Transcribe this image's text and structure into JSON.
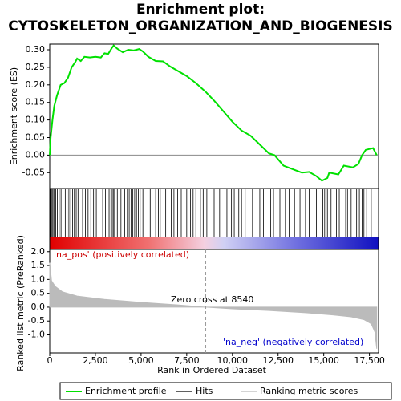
{
  "chart_data": {
    "type": "gsea",
    "title": "Enrichment plot:",
    "subtitle": "CYTOSKELETON_ORGANIZATION_AND_BIOGENESIS",
    "x_label": "Rank in Ordered Dataset",
    "y_label": "Enrichment score (ES)",
    "y2_label": "Ranked list metric (PreRanked)",
    "xlim": [
      0,
      18000
    ],
    "xticks": [
      0,
      {
        "value": 2500,
        "label": "2,500"
      },
      {
        "value": 5000,
        "label": "5,000"
      },
      {
        "value": 7500,
        "label": "7,500"
      },
      {
        "value": 10000,
        "label": "10,000"
      },
      {
        "value": 12500,
        "label": "12,500"
      },
      {
        "value": 15000,
        "label": "15,000"
      },
      {
        "value": 17500,
        "label": "17,500"
      }
    ],
    "ylim": [
      -0.095,
      0.316
    ],
    "yticks": [
      {
        "value": -0.05,
        "label": "-0.05"
      },
      {
        "value": 0,
        "label": "0.00"
      },
      {
        "value": 0.05,
        "label": "0.05"
      },
      {
        "value": 0.1,
        "label": "0.10"
      },
      {
        "value": 0.15,
        "label": "0.15"
      },
      {
        "value": 0.2,
        "label": "0.20"
      },
      {
        "value": 0.25,
        "label": "0.25"
      },
      {
        "value": 0.3,
        "label": "0.30"
      }
    ],
    "y2lim": [
      -1.65,
      2.08
    ],
    "y2ticks": [
      {
        "value": -1,
        "label": "-1.0"
      },
      {
        "value": -0.5,
        "label": "-0.5"
      },
      {
        "value": 0,
        "label": "0.0"
      },
      {
        "value": 0.5,
        "label": "0.5"
      },
      {
        "value": 1,
        "label": "1.0"
      },
      {
        "value": 1.5,
        "label": "1.5"
      },
      {
        "value": 2,
        "label": "2.0"
      }
    ],
    "series": [
      {
        "name": "Enrichment profile",
        "color": "#00e000",
        "x": [
          0,
          50,
          150,
          250,
          400,
          600,
          800,
          1000,
          1200,
          1400,
          1500,
          1700,
          1900,
          2200,
          2500,
          2800,
          3000,
          3200,
          3400,
          3500,
          3700,
          4000,
          4300,
          4600,
          4900,
          5100,
          5400,
          5800,
          6200,
          6600,
          7000,
          7500,
          8000,
          8540,
          9000,
          9500,
          10000,
          10500,
          11000,
          11500,
          12000,
          12300,
          12800,
          13300,
          13800,
          14200,
          14600,
          14900,
          15200,
          15300,
          15800,
          16100,
          16600,
          16900,
          17100,
          17300,
          17700,
          17900
        ],
        "values": [
          0,
          0.05,
          0.1,
          0.14,
          0.17,
          0.2,
          0.205,
          0.22,
          0.25,
          0.265,
          0.275,
          0.268,
          0.28,
          0.278,
          0.28,
          0.278,
          0.29,
          0.288,
          0.305,
          0.312,
          0.303,
          0.293,
          0.3,
          0.298,
          0.302,
          0.295,
          0.28,
          0.268,
          0.267,
          0.252,
          0.24,
          0.225,
          0.205,
          0.18,
          0.155,
          0.125,
          0.095,
          0.07,
          0.055,
          0.03,
          0.005,
          0,
          -0.03,
          -0.04,
          -0.05,
          -0.048,
          -0.06,
          -0.073,
          -0.065,
          -0.05,
          -0.055,
          -0.03,
          -0.035,
          -0.025,
          0,
          0.015,
          0.02,
          0
        ]
      },
      {
        "name": "Hits",
        "color": "#000000",
        "x": [
          30,
          80,
          130,
          180,
          250,
          330,
          420,
          520,
          620,
          720,
          850,
          950,
          1050,
          1150,
          1250,
          1350,
          1450,
          1550,
          1800,
          1950,
          2100,
          2250,
          2400,
          2550,
          2700,
          2900,
          3050,
          3250,
          3350,
          3420,
          3480,
          3550,
          3700,
          3900,
          4100,
          4250,
          4350,
          4450,
          4550,
          4650,
          4750,
          4850,
          4950,
          5100,
          5500,
          5800,
          5950,
          6050,
          6350,
          6650,
          6800,
          7000,
          7200,
          7500,
          7700,
          7850,
          8000,
          8250,
          8400,
          8600,
          9000,
          9300,
          9700,
          9950,
          10100,
          10350,
          10500,
          10700,
          11100,
          11500,
          11700,
          12100,
          12250,
          12600,
          12900,
          13100,
          13400,
          13700,
          14000,
          14200,
          14600,
          14950,
          15050,
          15200,
          15400,
          15700,
          15850,
          16000,
          16200,
          16300,
          16500,
          16800,
          16950,
          17100,
          17200,
          17350,
          17600
        ]
      },
      {
        "name": "Ranking metric scores",
        "color": "#bbbbbb",
        "axis": "y2",
        "x": [
          0,
          100,
          300,
          700,
          1500,
          3000,
          5000,
          7000,
          8540,
          10000,
          12000,
          14000,
          15500,
          16500,
          17200,
          17600,
          17800,
          17900
        ],
        "values": [
          1.6,
          0.95,
          0.75,
          0.55,
          0.4,
          0.28,
          0.17,
          0.08,
          0,
          -0.06,
          -0.12,
          -0.2,
          -0.28,
          -0.35,
          -0.45,
          -0.6,
          -0.9,
          -1.5
        ]
      }
    ],
    "zero_cross": 8540,
    "annotations": [
      "'na_pos' (positively correlated)",
      "Zero cross at 8540",
      "'na_neg' (negatively correlated)"
    ]
  }
}
